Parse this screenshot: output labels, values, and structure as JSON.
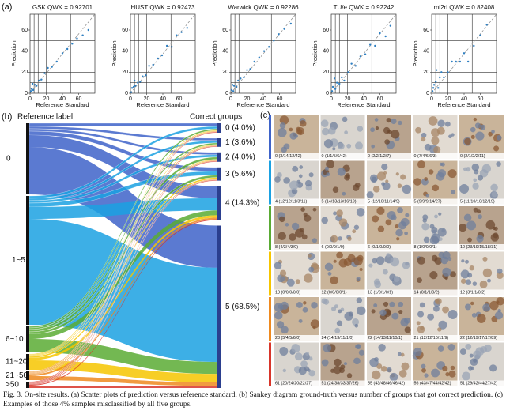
{
  "panel_labels": [
    "(a)",
    "(b)",
    "(c)"
  ],
  "chart_data": [
    {
      "type": "scatter",
      "title": "GSK QWK = 0.92701",
      "x_label": "Reference Standard",
      "y_label": "Prediction",
      "color": "#2f7fc1",
      "xlim": [
        0,
        80
      ],
      "ylim": [
        0,
        75
      ],
      "xticks": [
        0,
        20,
        40,
        60
      ],
      "yticks": [
        0,
        20,
        40,
        60
      ],
      "threshold_lines": [
        5,
        10,
        20,
        50
      ],
      "x": [
        1,
        2,
        4,
        6,
        8,
        11,
        14,
        18,
        22,
        27,
        33,
        40,
        46,
        52,
        58,
        65,
        72,
        3
      ],
      "y": [
        2,
        4,
        3,
        8,
        7,
        12,
        13,
        19,
        24,
        25,
        30,
        38,
        42,
        47,
        52,
        55,
        60,
        9
      ]
    },
    {
      "type": "scatter",
      "title": "HUST QWK = 0.92473",
      "x_label": "Reference Standard",
      "y_label": "Prediction",
      "color": "#2f7fc1",
      "xlim": [
        0,
        80
      ],
      "ylim": [
        0,
        75
      ],
      "xticks": [
        0,
        20,
        40,
        60
      ],
      "yticks": [
        0,
        20,
        40,
        60
      ],
      "threshold_lines": [
        5,
        10,
        20,
        50
      ],
      "x": [
        1,
        2,
        4,
        6,
        9,
        12,
        15,
        19,
        23,
        28,
        34,
        39,
        45,
        51,
        57,
        63,
        70,
        5
      ],
      "y": [
        1,
        5,
        6,
        7,
        10,
        11,
        16,
        17,
        26,
        27,
        33,
        36,
        45,
        44,
        55,
        58,
        62,
        12
      ]
    },
    {
      "type": "scatter",
      "title": "Warwick QWK = 0.92286",
      "x_label": "Reference Standard",
      "y_label": "Prediction",
      "color": "#2f7fc1",
      "xlim": [
        0,
        80
      ],
      "ylim": [
        0,
        75
      ],
      "xticks": [
        0,
        20,
        40,
        60
      ],
      "yticks": [
        0,
        20,
        40,
        60
      ],
      "threshold_lines": [
        5,
        10,
        20,
        50
      ],
      "x": [
        1,
        3,
        4,
        7,
        9,
        12,
        16,
        20,
        24,
        29,
        35,
        41,
        47,
        53,
        59,
        66,
        74,
        2
      ],
      "y": [
        3,
        2,
        7,
        6,
        12,
        14,
        15,
        22,
        23,
        30,
        34,
        40,
        44,
        50,
        56,
        61,
        66,
        8
      ]
    },
    {
      "type": "scatter",
      "title": "TU/e QWK = 0.92242",
      "x_label": "Reference Standard",
      "y_label": "Prediction",
      "color": "#2f7fc1",
      "xlim": [
        0,
        80
      ],
      "ylim": [
        0,
        75
      ],
      "xticks": [
        0,
        20,
        40,
        60
      ],
      "yticks": [
        0,
        20,
        40,
        60
      ],
      "threshold_lines": [
        5,
        10,
        20,
        50
      ],
      "x": [
        1,
        2,
        5,
        7,
        10,
        13,
        16,
        21,
        25,
        30,
        36,
        42,
        48,
        54,
        60,
        67,
        73,
        4
      ],
      "y": [
        2,
        6,
        4,
        10,
        9,
        15,
        12,
        20,
        28,
        26,
        35,
        37,
        46,
        45,
        57,
        54,
        64,
        14
      ]
    },
    {
      "type": "scatter",
      "title": "mi2rl QWK = 0.82408",
      "x_label": "Reference Standard",
      "y_label": "Prediction",
      "color": "#2f7fc1",
      "xlim": [
        0,
        80
      ],
      "ylim": [
        0,
        75
      ],
      "xticks": [
        0,
        20,
        40,
        60
      ],
      "yticks": [
        0,
        20,
        40,
        60
      ],
      "threshold_lines": [
        5,
        10,
        20,
        50
      ],
      "x": [
        1,
        2,
        3,
        5,
        8,
        10,
        12,
        15,
        20,
        25,
        30,
        35,
        40,
        45,
        52,
        60,
        68,
        6
      ],
      "y": [
        2,
        5,
        8,
        11,
        5,
        15,
        20,
        15,
        20,
        30,
        30,
        30,
        38,
        30,
        45,
        55,
        65,
        22
      ]
    }
  ],
  "sankey": {
    "left_title": "Reference label",
    "right_title": "Correct groups",
    "left_nodes": [
      "0",
      "1~5",
      "6~10",
      "11~20",
      "21~50",
      ">50"
    ],
    "right_nodes": [
      {
        "label": "0 (4.0%)",
        "value": 4.0
      },
      {
        "label": "1 (3.6%)",
        "value": 3.6
      },
      {
        "label": "2 (4.0%)",
        "value": 4.0
      },
      {
        "label": "3 (5.6%)",
        "value": 5.6
      },
      {
        "label": "4 (14.3%)",
        "value": 14.3
      },
      {
        "label": "5 (68.5%)",
        "value": 68.5
      }
    ]
  },
  "examples": [
    [
      "0 (3/14/12/42)",
      "0 (1/1/5/6/42)",
      "0 (2/2/1/2/7)",
      "0 (7/4/6/6/3)",
      "0 (2/1/2/2/11)"
    ],
    [
      "4 (12/12/11/3/11)",
      "5 (14/13/13/16/19)",
      "5 (12/10/11/14/9)",
      "5 (9/9/9/14/27)",
      "5 (11/10/10/12/19)"
    ],
    [
      "8 (4/3/4/3/0)",
      "6 (0/0/0/1/0)",
      "6 (0/1/0/0/0)",
      "8 (1/0/0/0/1)",
      "10 (23/19/15/18/31)"
    ],
    [
      "13 (0/0/0/0/0)",
      "12 (0/0/0/0/1)",
      "13 (1/0/1/0/1)",
      "14 (0/1/1/0/2)",
      "12 (3/1/1/0/2)"
    ],
    [
      "23 (5/4/5/6/0)",
      "24 (14/13/11/1/0)",
      "22 (14/13/11/10/1)",
      "21 (12/12/10/11/9)",
      "22 (12/19/17/17/89)"
    ],
    [
      "61 (20/24/20/22/27)",
      "51 (24/38/33/37/26)",
      "55 (43/48/46/46/42)",
      "56 (43/47/44/42/42)",
      "51 (29/42/44/27/42)"
    ]
  ],
  "caption": "Fig. 3. On-site results. (a) Scatter plots of prediction versus reference standard. (b) Sankey diagram ground-truth versus number of groups that got correct prediction. (c) Examples of those 4% samples misclassified by all five groups."
}
